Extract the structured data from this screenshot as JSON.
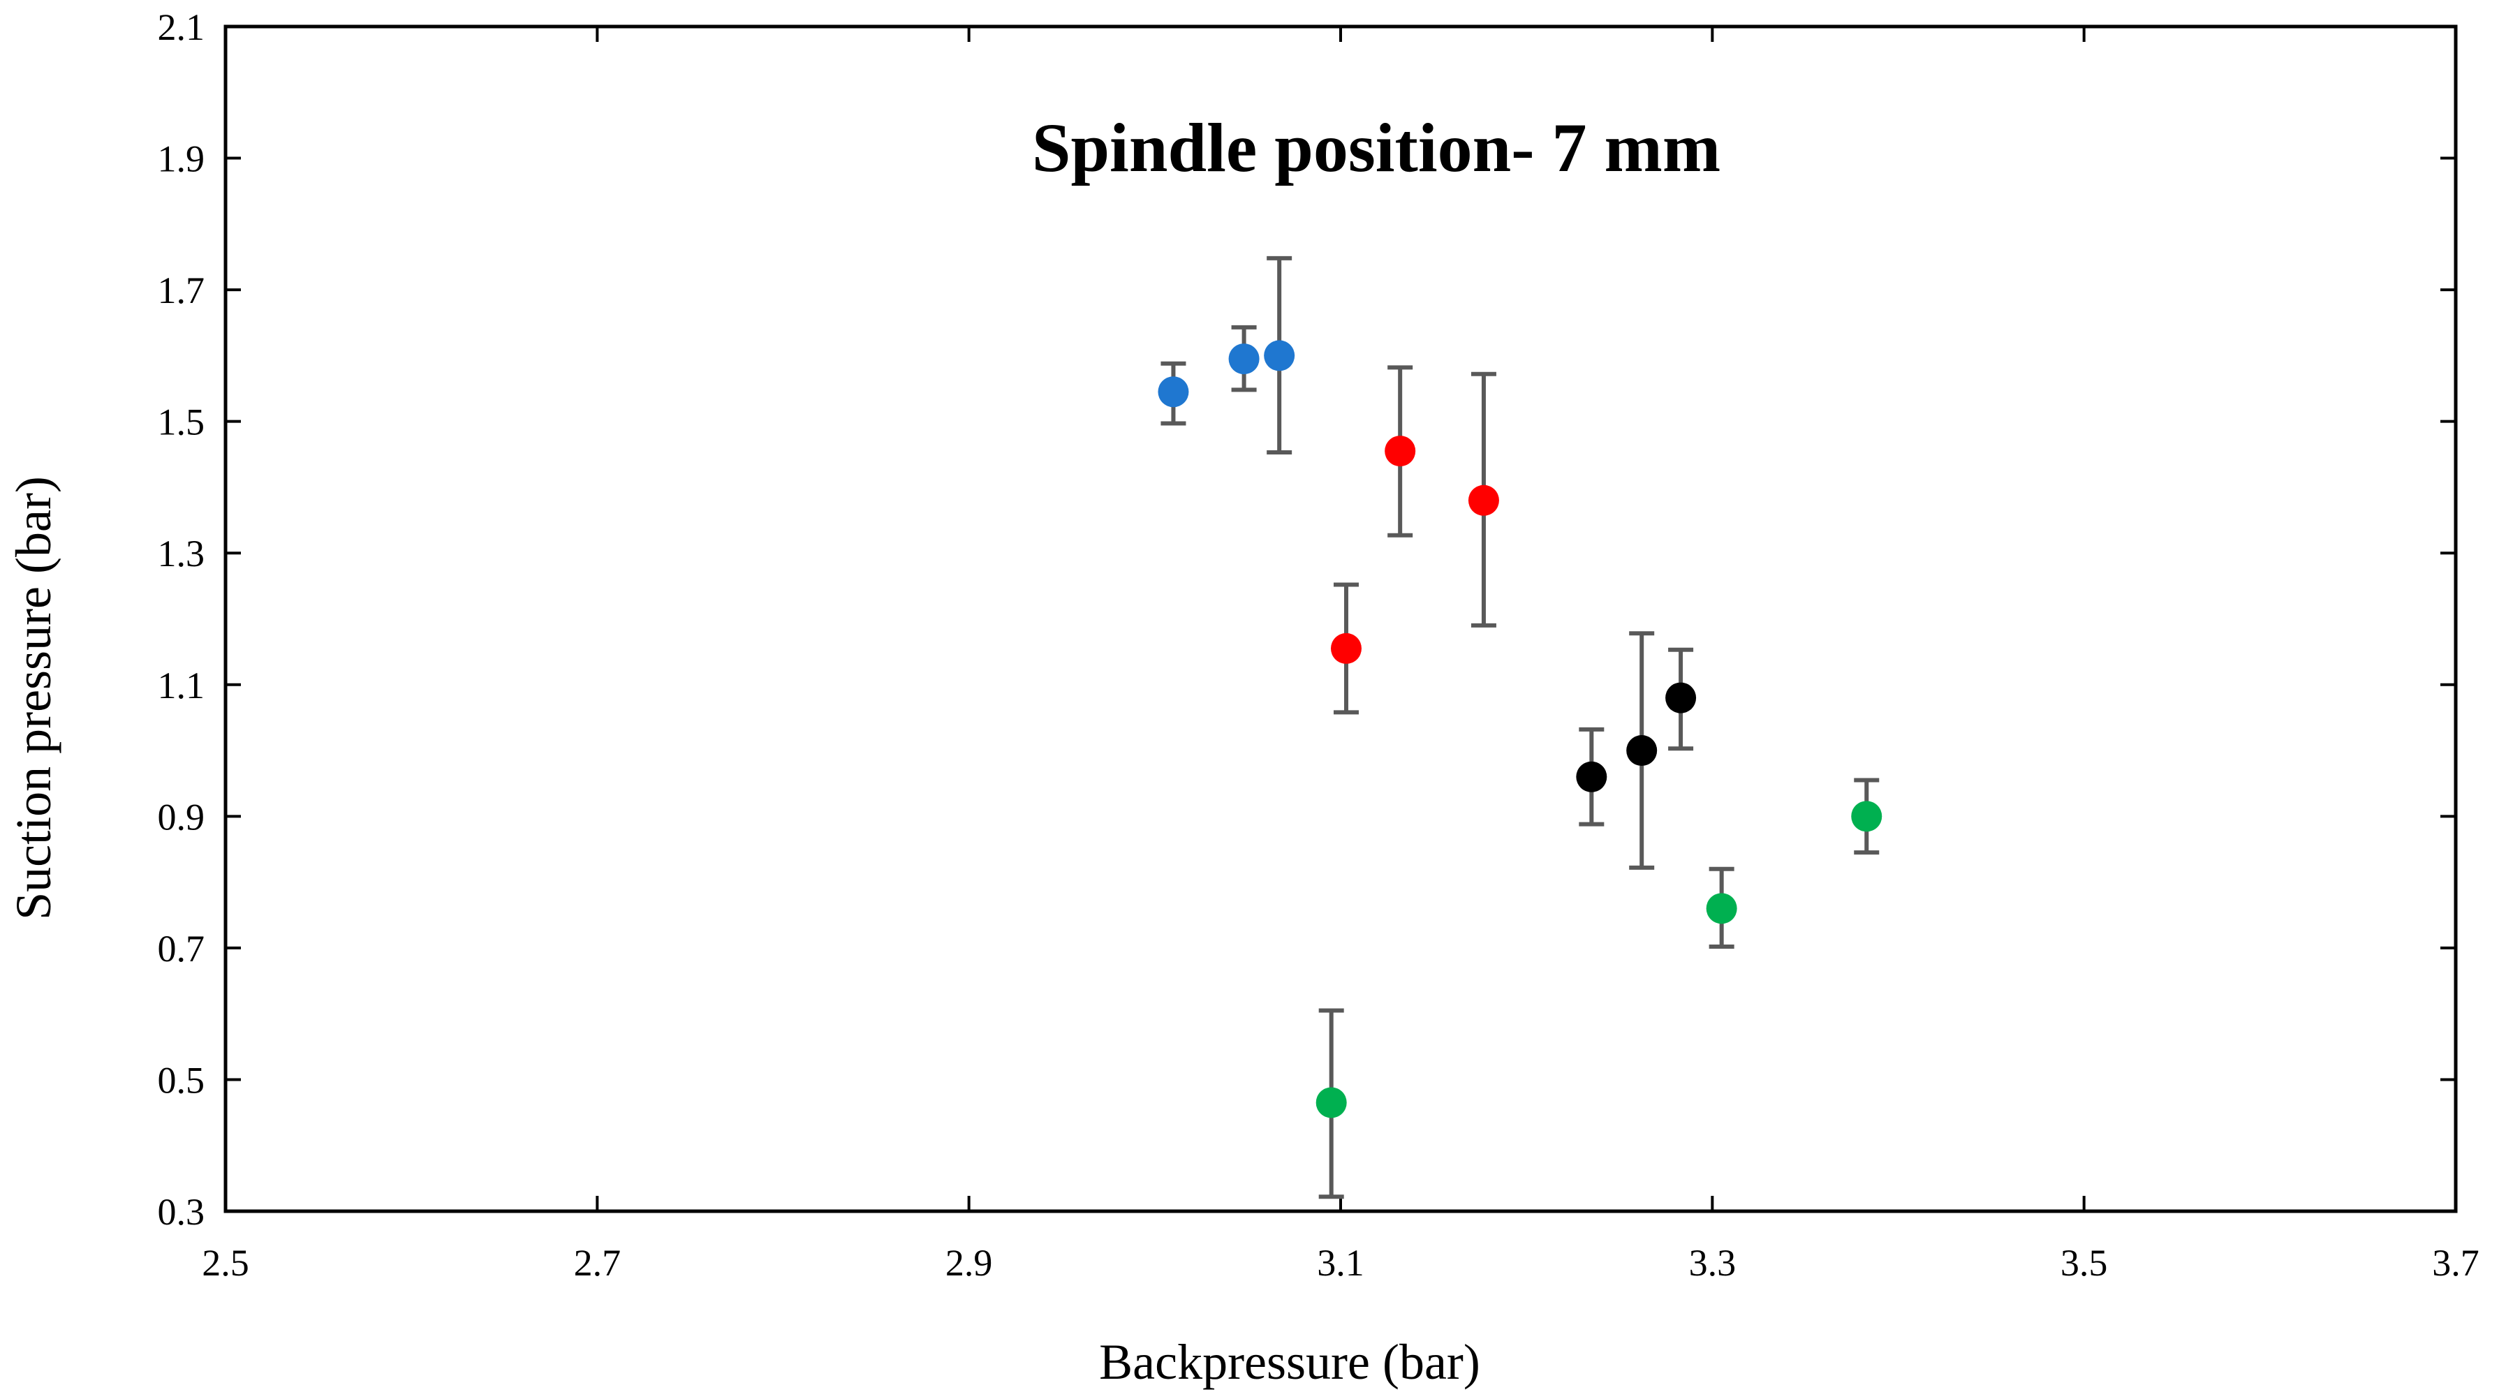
{
  "chart_data": {
    "type": "scatter",
    "title": "Spindle position- 7 mm",
    "xlabel": "Backpressure (bar)",
    "ylabel": "Suction pressure (bar)",
    "xlim": [
      2.5,
      3.7
    ],
    "ylim": [
      0.3,
      2.1
    ],
    "xticks": [
      "2.5",
      "2.7",
      "2.9",
      "3.1",
      "3.3",
      "3.5",
      "3.7"
    ],
    "yticks": [
      "0.3",
      "0.5",
      "0.7",
      "0.9",
      "1.1",
      "1.3",
      "1.5",
      "1.7",
      "1.9",
      "2.1"
    ],
    "grid": false,
    "legend": "none",
    "series": [
      {
        "name": "blue",
        "color": "#1f77d0",
        "points": [
          {
            "x": 3.01,
            "y": 1.545,
            "err_low": 1.497,
            "err_high": 1.588
          },
          {
            "x": 3.048,
            "y": 1.595,
            "err_low": 1.548,
            "err_high": 1.643
          },
          {
            "x": 3.067,
            "y": 1.6,
            "err_low": 1.453,
            "err_high": 1.748
          }
        ]
      },
      {
        "name": "red",
        "color": "#ff0000",
        "points": [
          {
            "x": 3.103,
            "y": 1.155,
            "err_low": 1.058,
            "err_high": 1.252
          },
          {
            "x": 3.132,
            "y": 1.455,
            "err_low": 1.327,
            "err_high": 1.582
          },
          {
            "x": 3.177,
            "y": 1.38,
            "err_low": 1.19,
            "err_high": 1.572
          }
        ]
      },
      {
        "name": "black",
        "color": "#000000",
        "points": [
          {
            "x": 3.235,
            "y": 0.96,
            "err_low": 0.888,
            "err_high": 1.032
          },
          {
            "x": 3.262,
            "y": 1.0,
            "err_low": 0.822,
            "err_high": 1.178
          },
          {
            "x": 3.283,
            "y": 1.08,
            "err_low": 1.003,
            "err_high": 1.153
          }
        ]
      },
      {
        "name": "green",
        "color": "#00b050",
        "points": [
          {
            "x": 3.095,
            "y": 0.465,
            "err_low": 0.322,
            "err_high": 0.605
          },
          {
            "x": 3.305,
            "y": 0.76,
            "err_low": 0.702,
            "err_high": 0.82
          },
          {
            "x": 3.383,
            "y": 0.9,
            "err_low": 0.845,
            "err_high": 0.955
          }
        ]
      }
    ],
    "errorbar_color": "#595959"
  }
}
